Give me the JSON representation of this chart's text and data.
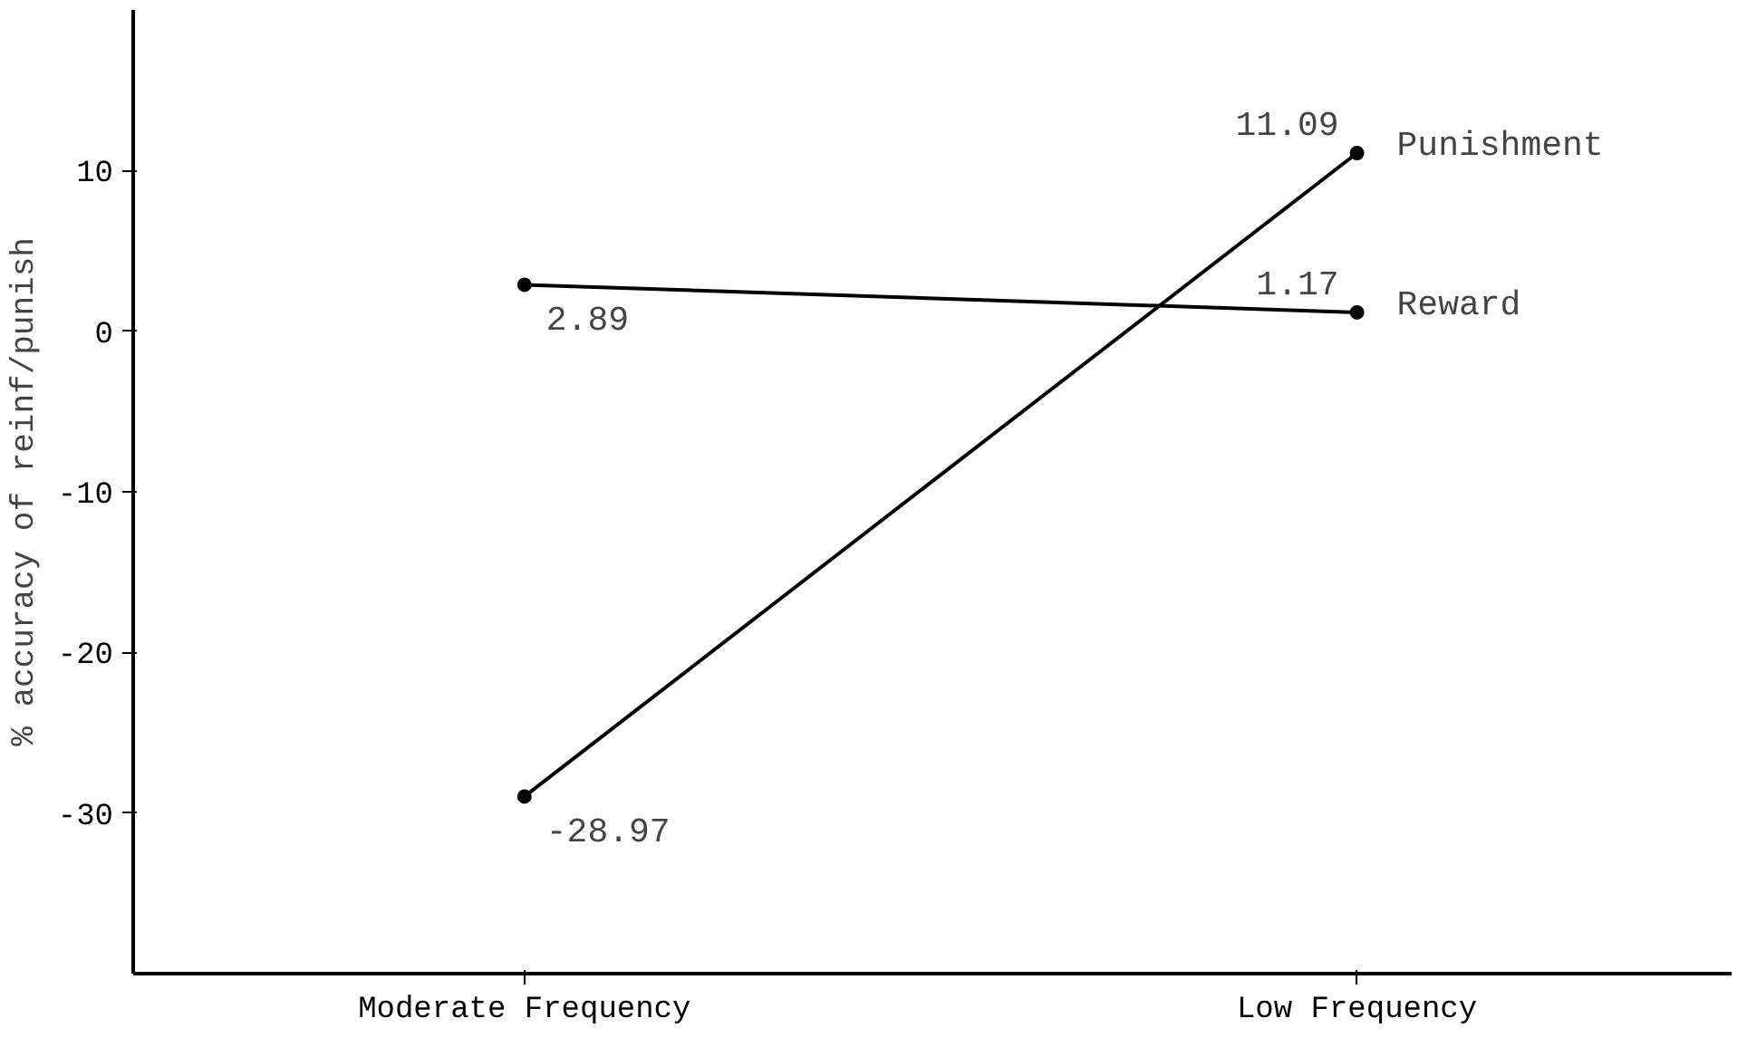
{
  "chart_data": {
    "type": "line",
    "ylabel": "% accuracy of reinf/punish",
    "categories": [
      "Moderate Frequency",
      "Low Frequency"
    ],
    "series": [
      {
        "name": "Punishment",
        "color": "#000000",
        "values": [
          -28.97,
          11.09
        ]
      },
      {
        "name": "Reward",
        "color": "#000000",
        "values": [
          2.89,
          1.17
        ]
      }
    ],
    "ylim": [
      -40,
      20
    ],
    "yticks": [
      -30,
      -20,
      -10,
      0,
      10
    ],
    "data_labels": true,
    "marker": "circle",
    "line_style": "solid",
    "grid": false
  }
}
